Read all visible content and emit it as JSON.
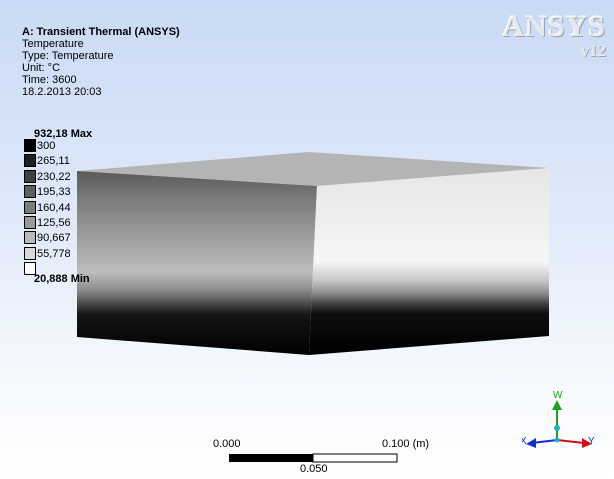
{
  "info": {
    "title": "A: Transient Thermal (ANSYS)",
    "result": "Temperature",
    "type": "Type: Temperature",
    "unit": "Unit: °C",
    "time": "Time: 3600",
    "date": "18.2.2013 20:03"
  },
  "legend": {
    "max_label": "932,18 Max",
    "min_label": "20,888 Min",
    "entries": [
      {
        "label": "300",
        "color": "#000000"
      },
      {
        "label": "265,11",
        "color": "#202020"
      },
      {
        "label": "230,22",
        "color": "#404040"
      },
      {
        "label": "195,33",
        "color": "#5e5e5e"
      },
      {
        "label": "160,44",
        "color": "#7c7c7c"
      },
      {
        "label": "125,56",
        "color": "#9a9a9a"
      },
      {
        "label": "90,667",
        "color": "#b8b8b8"
      },
      {
        "label": "55,778",
        "color": "#d8d8d8"
      },
      {
        "label": "",
        "color": "#ffffff"
      }
    ]
  },
  "logo": {
    "name": "ANSYS",
    "version": "v12"
  },
  "scale": {
    "left": "0.000",
    "right": "0.100 (m)",
    "mid": "0.050"
  },
  "triad": {
    "y_label": "Y",
    "z_label": "W",
    "x_label": "X"
  }
}
